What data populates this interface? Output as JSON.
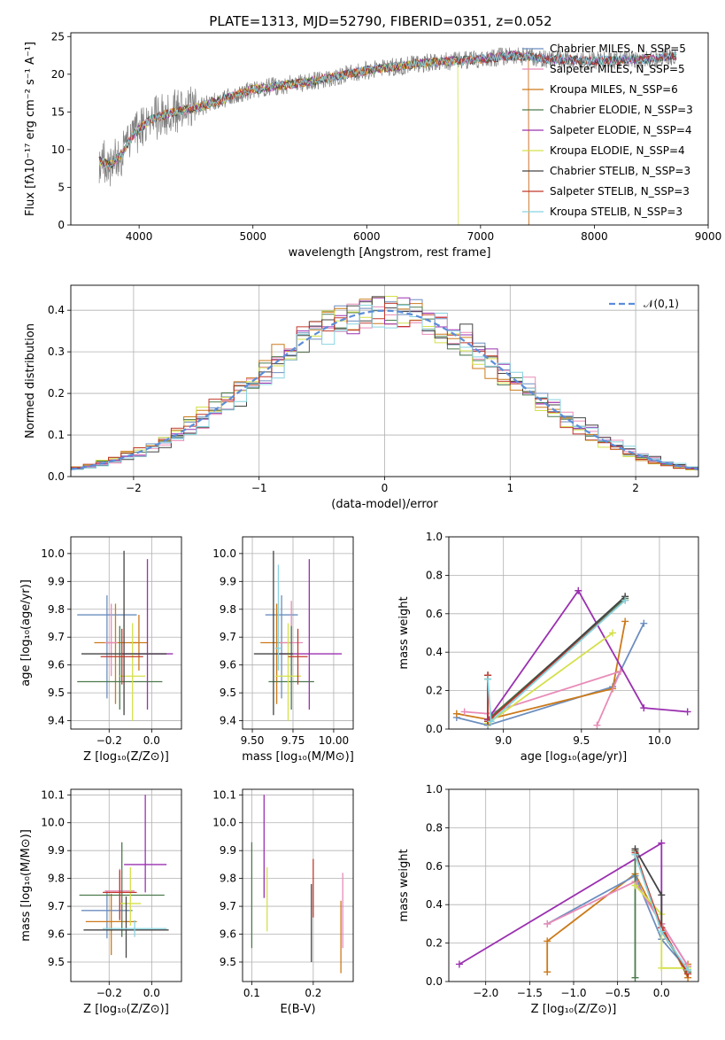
{
  "chart_data": [
    {
      "id": "spectrum",
      "type": "line",
      "title": "PLATE=1313, MJD=52790, FIBERID=0351, z=0.052",
      "xlabel": "wavelength [Angstrom, rest frame]",
      "ylabel": "Flux [fλ10⁻¹⁷ erg cm⁻² s⁻¹ A⁻¹]",
      "xlim": [
        3400,
        9000
      ],
      "ylim": [
        0,
        25.5
      ],
      "xticks": [
        "4000",
        "5000",
        "6000",
        "7000",
        "8000",
        "9000"
      ],
      "yticks": [
        "0",
        "5",
        "10",
        "15",
        "20",
        "25"
      ],
      "grid": false,
      "legend_position": "upper-right",
      "legend": [
        {
          "name": "Chabrier MILES, N_SSP=5",
          "color": "#6c8ebf"
        },
        {
          "name": "Salpeter MILES, N_SSP=5",
          "color": "#e88bb7"
        },
        {
          "name": "Kroupa MILES, N_SSP=6",
          "color": "#cc7a1a"
        },
        {
          "name": "Chabrier ELODIE, N_SSP=3",
          "color": "#4d7a4d"
        },
        {
          "name": "Salpeter ELODIE, N_SSP=4",
          "color": "#9b30b0"
        },
        {
          "name": "Kroupa ELODIE, N_SSP=4",
          "color": "#d4e04a"
        },
        {
          "name": "Chabrier STELIB, N_SSP=3",
          "color": "#444444"
        },
        {
          "name": "Salpeter STELIB, N_SSP=3",
          "color": "#c0392b"
        },
        {
          "name": "Kroupa STELIB, N_SSP=3",
          "color": "#88d4e0"
        }
      ],
      "data_color": "#808080",
      "continuum_points": [
        [
          3650,
          8.5
        ],
        [
          3750,
          8
        ],
        [
          3850,
          9.5
        ],
        [
          3950,
          12
        ],
        [
          4100,
          14
        ],
        [
          4300,
          15
        ],
        [
          4500,
          15.5
        ],
        [
          4800,
          17
        ],
        [
          5000,
          18
        ],
        [
          5500,
          19
        ],
        [
          6000,
          20.5
        ],
        [
          6500,
          21.5
        ],
        [
          7000,
          22
        ],
        [
          7300,
          22.5
        ],
        [
          7600,
          22
        ],
        [
          8000,
          21.8
        ],
        [
          8500,
          22
        ],
        [
          8700,
          22.5
        ]
      ]
    },
    {
      "id": "residuals",
      "type": "step",
      "xlabel": "(data-model)/error",
      "ylabel": "Normed distribution",
      "xlim": [
        -2.5,
        2.5
      ],
      "ylim": [
        0,
        0.46
      ],
      "xticks": [
        "−2",
        "−1",
        "0",
        "1",
        "2"
      ],
      "yticks": [
        "0.0",
        "0.1",
        "0.2",
        "0.3",
        "0.4"
      ],
      "grid": true,
      "legend": [
        {
          "name": "𝒩(0,1)",
          "color": "#5b8dd9"
        }
      ],
      "bin_width": 0.1,
      "series": [
        {
          "color": "#6c8ebf",
          "shift": 0.0
        },
        {
          "color": "#cc7a1a",
          "shift": 0.012
        },
        {
          "color": "#e88bb7",
          "shift": -0.01
        },
        {
          "color": "#4d7a4d",
          "shift": 0.006
        },
        {
          "color": "#9b30b0",
          "shift": -0.006
        },
        {
          "color": "#d4e04a",
          "shift": 0.015
        },
        {
          "color": "#444444",
          "shift": -0.014
        },
        {
          "color": "#c0392b",
          "shift": 0.009
        },
        {
          "color": "#88d4e0",
          "shift": -0.012
        }
      ]
    },
    {
      "id": "Z_vs_age",
      "type": "errorbar",
      "xlabel": "Z [log₁₀(Z/Z⊙)]",
      "ylabel": "age  [log₁₀(age/yr)]",
      "xlim": [
        -0.38,
        0.14
      ],
      "ylim": [
        9.37,
        10.06
      ],
      "xticks": [
        "−0.2",
        "0.0"
      ],
      "yticks": [
        "9.4",
        "9.5",
        "9.6",
        "9.7",
        "9.8",
        "9.9",
        "10.0"
      ],
      "grid": true,
      "points": [
        {
          "x": -0.21,
          "y": 9.78,
          "xerr": 0.14,
          "yerr_lo": 0.3,
          "yerr_hi": 0.07,
          "color": "#6c8ebf"
        },
        {
          "x": -0.17,
          "y": 9.68,
          "xerr": 0.1,
          "yerr_lo": 0.22,
          "yerr_hi": 0.14,
          "color": "#cc7a1a"
        },
        {
          "x": -0.06,
          "y": 9.68,
          "xerr": 0.04,
          "yerr_lo": 0.1,
          "yerr_hi": 0.1,
          "color": "#cc7a1a"
        },
        {
          "x": -0.19,
          "y": 9.68,
          "xerr": 0.03,
          "yerr_lo": 0.12,
          "yerr_hi": 0.14,
          "color": "#e88bb7"
        },
        {
          "x": -0.15,
          "y": 9.54,
          "xerr": 0.2,
          "yerr_lo": 0.1,
          "yerr_hi": 0.2,
          "color": "#4d7a4d"
        },
        {
          "x": -0.02,
          "y": 9.64,
          "xerr": 0.12,
          "yerr_lo": 0.2,
          "yerr_hi": 0.34,
          "color": "#9b30b0"
        },
        {
          "x": -0.09,
          "y": 9.56,
          "xerr": 0.06,
          "yerr_lo": 0.16,
          "yerr_hi": 0.19,
          "color": "#d4e04a"
        },
        {
          "x": -0.13,
          "y": 9.64,
          "xerr": 0.2,
          "yerr_lo": 0.22,
          "yerr_hi": 0.37,
          "color": "#444444"
        },
        {
          "x": -0.14,
          "y": 9.63,
          "xerr": 0.1,
          "yerr_lo": 0.1,
          "yerr_hi": 0.1,
          "color": "#c0392b"
        }
      ]
    },
    {
      "id": "mass_vs_age",
      "type": "errorbar",
      "xlabel": "mass [log₁₀(M/M⊙)]",
      "xlim": [
        9.44,
        10.12
      ],
      "ylim": [
        9.37,
        10.06
      ],
      "xticks": [
        "9.50",
        "9.75",
        "10.00"
      ],
      "yticks": [
        "9.4",
        "9.5",
        "9.6",
        "9.7",
        "9.8",
        "9.9",
        "10.0"
      ],
      "grid": true,
      "points": [
        {
          "x": 9.68,
          "y": 9.78,
          "xerr": 0.1,
          "yerr_lo": 0.3,
          "yerr_hi": 0.07,
          "color": "#6c8ebf"
        },
        {
          "x": 9.65,
          "y": 9.68,
          "xerr": 0.1,
          "yerr_lo": 0.22,
          "yerr_hi": 0.14,
          "color": "#cc7a1a"
        },
        {
          "x": 9.74,
          "y": 9.68,
          "xerr": 0.07,
          "yerr_lo": 0.1,
          "yerr_hi": 0.15,
          "color": "#e88bb7"
        },
        {
          "x": 9.74,
          "y": 9.54,
          "xerr": 0.14,
          "yerr_lo": 0.1,
          "yerr_hi": 0.2,
          "color": "#4d7a4d"
        },
        {
          "x": 9.85,
          "y": 9.64,
          "xerr": 0.2,
          "yerr_lo": 0.2,
          "yerr_hi": 0.34,
          "color": "#9b30b0"
        },
        {
          "x": 9.72,
          "y": 9.56,
          "xerr": 0.08,
          "yerr_lo": 0.16,
          "yerr_hi": 0.19,
          "color": "#d4e04a"
        },
        {
          "x": 9.63,
          "y": 9.64,
          "xerr": 0.12,
          "yerr_lo": 0.22,
          "yerr_hi": 0.37,
          "color": "#444444"
        },
        {
          "x": 9.78,
          "y": 9.63,
          "xerr": 0.06,
          "yerr_lo": 0.1,
          "yerr_hi": 0.1,
          "color": "#c0392b"
        },
        {
          "x": 9.66,
          "y": 9.66,
          "xerr": 0.02,
          "yerr_lo": 0.08,
          "yerr_hi": 0.3,
          "color": "#88d4e0"
        }
      ]
    },
    {
      "id": "age_vs_weight",
      "type": "line",
      "xlabel": "age  [log₁₀(age/yr)]",
      "ylabel": "mass weight",
      "xlim": [
        8.65,
        10.25
      ],
      "ylim": [
        0,
        1.0
      ],
      "xticks": [
        "9.0",
        "9.5",
        "10.0"
      ],
      "yticks": [
        "0.0",
        "0.2",
        "0.4",
        "0.6",
        "0.8",
        "1.0"
      ],
      "grid": true,
      "series": [
        {
          "color": "#6c8ebf",
          "x": [
            8.7,
            8.9,
            9.7,
            9.9
          ],
          "y": [
            0.06,
            0.02,
            0.22,
            0.55
          ]
        },
        {
          "color": "#cc7a1a",
          "x": [
            8.7,
            8.9,
            9.7,
            9.78
          ],
          "y": [
            0.08,
            0.05,
            0.21,
            0.56
          ]
        },
        {
          "color": "#e88bb7",
          "x": [
            8.75,
            8.9,
            9.75,
            9.6
          ],
          "y": [
            0.09,
            0.08,
            0.3,
            0.02
          ]
        },
        {
          "color": "#4d7a4d",
          "x": [
            8.9,
            8.9,
            9.78
          ],
          "y": [
            0.26,
            0.05,
            0.68
          ]
        },
        {
          "color": "#9b30b0",
          "x": [
            8.9,
            9.48,
            9.9,
            10.18
          ],
          "y": [
            0.05,
            0.72,
            0.11,
            0.09
          ]
        },
        {
          "color": "#d4e04a",
          "x": [
            8.9,
            8.92,
            9.7
          ],
          "y": [
            0.03,
            0.04,
            0.5
          ]
        },
        {
          "color": "#444444",
          "x": [
            8.9,
            8.9,
            9.78
          ],
          "y": [
            0.28,
            0.04,
            0.69
          ]
        },
        {
          "color": "#c0392b",
          "x": [
            8.9,
            8.9,
            9.78
          ],
          "y": [
            0.28,
            0.04,
            0.67
          ]
        },
        {
          "color": "#88d4e0",
          "x": [
            8.9,
            8.92,
            9.78
          ],
          "y": [
            0.26,
            0.04,
            0.67
          ]
        }
      ]
    },
    {
      "id": "Z_vs_mass",
      "type": "errorbar",
      "xlabel": "Z [log₁₀(Z/Z⊙)]",
      "ylabel": "mass [log₁₀(M/M⊙)]",
      "xlim": [
        -0.38,
        0.14
      ],
      "ylim": [
        9.43,
        10.12
      ],
      "xticks": [
        "−0.2",
        "0.0"
      ],
      "yticks": [
        "9.5",
        "9.6",
        "9.7",
        "9.8",
        "9.9",
        "10.0",
        "10.1"
      ],
      "grid": true,
      "points": [
        {
          "x": -0.21,
          "y": 9.685,
          "xerr": 0.12,
          "yerr_lo": 0.1,
          "yerr_hi": 0.07,
          "color": "#6c8ebf"
        },
        {
          "x": -0.19,
          "y": 9.645,
          "xerr": 0.12,
          "yerr_lo": 0.12,
          "yerr_hi": 0.1,
          "color": "#cc7a1a"
        },
        {
          "x": -0.15,
          "y": 9.755,
          "xerr": 0.07,
          "yerr_lo": 0.1,
          "yerr_hi": 0.08,
          "color": "#e88bb7"
        },
        {
          "x": -0.14,
          "y": 9.74,
          "xerr": 0.2,
          "yerr_lo": 0.15,
          "yerr_hi": 0.19,
          "color": "#4d7a4d"
        },
        {
          "x": -0.03,
          "y": 9.85,
          "xerr": 0.1,
          "yerr_lo": 0.1,
          "yerr_hi": 0.25,
          "color": "#9b30b0"
        },
        {
          "x": -0.1,
          "y": 9.71,
          "xerr": 0.05,
          "yerr_lo": 0.08,
          "yerr_hi": 0.13,
          "color": "#d4e04a"
        },
        {
          "x": -0.12,
          "y": 9.615,
          "xerr": 0.2,
          "yerr_lo": 0.1,
          "yerr_hi": 0.12,
          "color": "#444444"
        },
        {
          "x": -0.15,
          "y": 9.75,
          "xerr": 0.08,
          "yerr_lo": 0.1,
          "yerr_hi": 0.08,
          "color": "#c0392b"
        },
        {
          "x": -0.08,
          "y": 9.62,
          "xerr": 0.15,
          "yerr_lo": 0.03,
          "yerr_hi": 0.03,
          "color": "#88d4e0"
        }
      ]
    },
    {
      "id": "ebv_vs_mass",
      "type": "errorbar",
      "xlabel": "E(B-V)",
      "xlim": [
        0.085,
        0.265
      ],
      "ylim": [
        9.43,
        10.12
      ],
      "xticks": [
        "0.1",
        "0.2"
      ],
      "yticks": [
        "9.5",
        "9.6",
        "9.7",
        "9.8",
        "9.9",
        "10.0",
        "10.1"
      ],
      "grid": true,
      "points": [
        {
          "x": 0.1,
          "y": 9.72,
          "xerr": 0,
          "yerr_lo": 0.17,
          "yerr_hi": 0.21,
          "color": "#4d7a4d"
        },
        {
          "x": 0.12,
          "y": 9.85,
          "xerr": 0,
          "yerr_lo": 0.12,
          "yerr_hi": 0.25,
          "color": "#9b30b0"
        },
        {
          "x": 0.125,
          "y": 9.73,
          "xerr": 0,
          "yerr_lo": 0.12,
          "yerr_hi": 0.11,
          "color": "#d4e04a"
        },
        {
          "x": 0.197,
          "y": 9.64,
          "xerr": 0,
          "yerr_lo": 0.14,
          "yerr_hi": 0.14,
          "color": "#444444"
        },
        {
          "x": 0.2,
          "y": 9.77,
          "xerr": 0,
          "yerr_lo": 0.11,
          "yerr_hi": 0.1,
          "color": "#c0392b"
        },
        {
          "x": 0.245,
          "y": 9.6,
          "xerr": 0,
          "yerr_lo": 0.14,
          "yerr_hi": 0.12,
          "color": "#cc7a1a"
        },
        {
          "x": 0.248,
          "y": 9.7,
          "xerr": 0,
          "yerr_lo": 0.15,
          "yerr_hi": 0.12,
          "color": "#e88bb7"
        }
      ]
    },
    {
      "id": "Z_vs_weight",
      "type": "line",
      "xlabel": "Z [log₁₀(Z/Z⊙)]",
      "ylabel": "mass weight",
      "xlim": [
        -2.42,
        0.42
      ],
      "ylim": [
        0,
        1.0
      ],
      "xticks": [
        "−2.0",
        "−1.5",
        "−1.0",
        "−0.5",
        "0.0"
      ],
      "yticks": [
        "0.0",
        "0.2",
        "0.4",
        "0.6",
        "0.8",
        "1.0"
      ],
      "grid": true,
      "series": [
        {
          "color": "#9b30b0",
          "x": [
            -2.3,
            0.0,
            0.0,
            0.3
          ],
          "y": [
            0.09,
            0.72,
            0.3,
            0.08
          ]
        },
        {
          "color": "#cc7a1a",
          "x": [
            -1.3,
            -1.3,
            -0.3,
            0.3,
            0.3
          ],
          "y": [
            0.05,
            0.21,
            0.56,
            0.02,
            0.09
          ]
        },
        {
          "color": "#6c8ebf",
          "x": [
            -1.3,
            -0.3,
            0.0,
            0.3
          ],
          "y": [
            0.3,
            0.55,
            0.22,
            0.06
          ]
        },
        {
          "color": "#e88bb7",
          "x": [
            -1.3,
            -0.3,
            0.0,
            0.3
          ],
          "y": [
            0.3,
            0.52,
            0.3,
            0.08
          ]
        },
        {
          "color": "#4d7a4d",
          "x": [
            -0.3,
            -0.3,
            0.0,
            0.3
          ],
          "y": [
            0.02,
            0.68,
            0.26,
            0.05
          ]
        },
        {
          "color": "#d4e04a",
          "x": [
            -0.3,
            0.0,
            0.0,
            0.3
          ],
          "y": [
            0.5,
            0.35,
            0.07,
            0.07
          ]
        },
        {
          "color": "#444444",
          "x": [
            -0.3,
            0.0,
            0.0,
            0.3
          ],
          "y": [
            0.69,
            0.45,
            0.28,
            0.04
          ]
        },
        {
          "color": "#c0392b",
          "x": [
            -0.3,
            0.0,
            0.3
          ],
          "y": [
            0.67,
            0.28,
            0.04
          ]
        },
        {
          "color": "#88d4e0",
          "x": [
            -0.3,
            0.0,
            0.3
          ],
          "y": [
            0.66,
            0.26,
            0.06
          ]
        }
      ]
    }
  ]
}
